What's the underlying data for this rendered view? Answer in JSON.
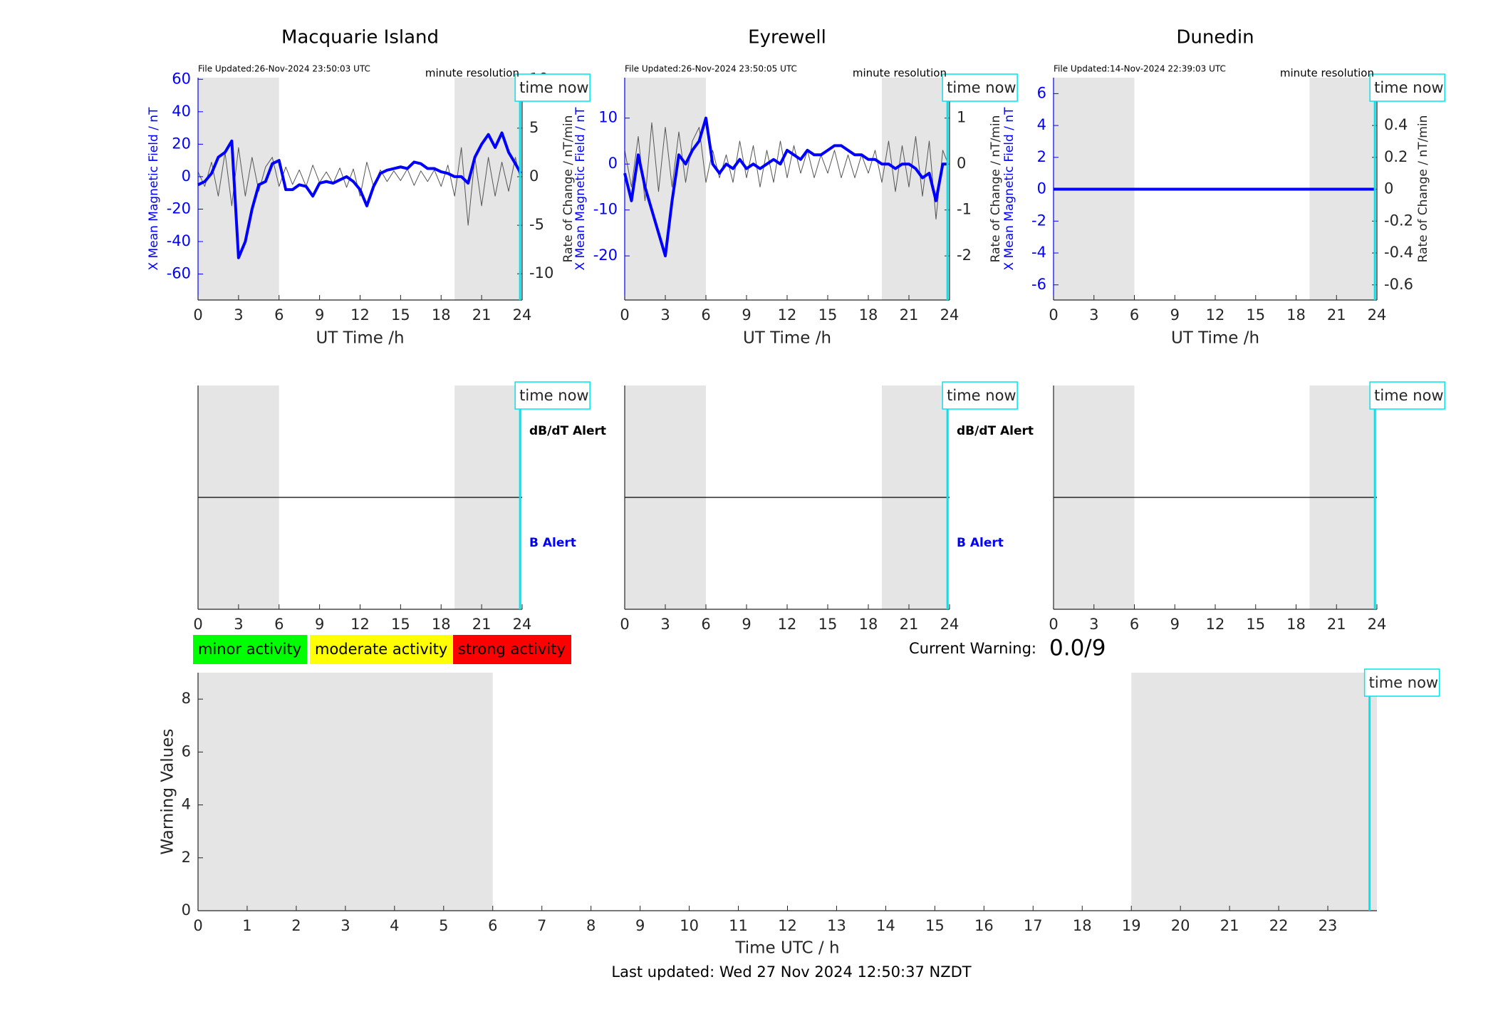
{
  "chart_data": [
    {
      "type": "line",
      "title": "Macquarie Island",
      "file_updated": "File Updated:26-Nov-2024 23:50:03 UTC",
      "resolution": "minute resolution",
      "xlabel": "UT Time /h",
      "ylabel": "X Mean Magnetic Field / nT",
      "y2label": "Rate of Change / nT/min",
      "ycolor": "#0000ff",
      "xlim": [
        0,
        24
      ],
      "xticks": [
        0,
        3,
        6,
        9,
        12,
        15,
        18,
        21,
        24
      ],
      "ylim": [
        -76,
        61
      ],
      "yticks": [
        -60,
        -40,
        -20,
        0,
        20,
        40,
        60
      ],
      "y2lim": [
        -12.7,
        10.2
      ],
      "y2ticks": [
        -10,
        -5,
        0,
        5,
        10
      ],
      "shaded": [
        [
          0,
          6
        ],
        [
          19,
          24
        ]
      ],
      "time_now": 23.85,
      "time_now_label": "time now",
      "x": [
        0,
        0.5,
        1,
        1.5,
        2,
        2.5,
        3,
        3.5,
        4,
        4.5,
        5,
        5.5,
        6,
        6.5,
        7,
        7.5,
        8,
        8.5,
        9,
        9.5,
        10,
        10.5,
        11,
        11.5,
        12,
        12.5,
        13,
        13.5,
        14,
        14.5,
        15,
        15.5,
        16,
        16.5,
        17,
        17.5,
        18,
        18.5,
        19,
        19.5,
        20,
        20.5,
        21,
        21.5,
        22,
        22.5,
        23,
        23.5,
        23.9
      ],
      "series": [
        {
          "color": "#555555",
          "axis": "y2",
          "values": [
            0.5,
            -1,
            1.5,
            -2,
            2.5,
            -3,
            3,
            -2,
            2,
            -1.5,
            1,
            2,
            -1,
            1,
            -0.8,
            0.7,
            -1,
            1.2,
            -0.6,
            0.5,
            -0.7,
            0.9,
            -1.1,
            0.8,
            -2,
            1.5,
            -1,
            0.7,
            -0.5,
            0.6,
            -0.4,
            0.8,
            -0.9,
            0.6,
            -0.5,
            0.7,
            -1,
            1.2,
            -2,
            3,
            -5,
            2,
            -3,
            2,
            -2,
            1.5,
            -1.5,
            2,
            -0.5
          ]
        },
        {
          "color": "#0000ff",
          "axis": "y",
          "values": [
            -5,
            -3,
            2,
            12,
            15,
            22,
            -50,
            -40,
            -20,
            -5,
            -3,
            8,
            10,
            -8,
            -8,
            -5,
            -6,
            -12,
            -4,
            -3,
            -4,
            -2,
            0,
            -3,
            -8,
            -18,
            -6,
            2,
            4,
            5,
            6,
            5,
            9,
            8,
            5,
            5,
            3,
            2,
            0,
            0,
            -4,
            12,
            20,
            26,
            18,
            27,
            15,
            8,
            2
          ]
        }
      ]
    },
    {
      "type": "line",
      "title": "Eyrewell",
      "file_updated": "File Updated:26-Nov-2024 23:50:05 UTC",
      "resolution": "minute resolution",
      "xlabel": "UT Time /h",
      "ylabel": "X Mean Magnetic Field / nT",
      "y2label": "Rate of Change / nT/min",
      "ycolor": "#0000ff",
      "xlim": [
        0,
        24
      ],
      "xticks": [
        0,
        3,
        6,
        9,
        12,
        15,
        18,
        21,
        24
      ],
      "ylim": [
        -29.6,
        18.8
      ],
      "yticks": [
        -20,
        -10,
        0,
        10
      ],
      "y2lim": [
        -2.96,
        1.88
      ],
      "y2ticks": [
        -2,
        -1,
        0,
        1
      ],
      "shaded": [
        [
          0,
          6
        ],
        [
          19,
          24
        ]
      ],
      "time_now": 23.85,
      "time_now_label": "time now",
      "x": [
        0,
        0.5,
        1,
        1.5,
        2,
        2.5,
        3,
        3.5,
        4,
        4.5,
        5,
        5.5,
        6,
        6.5,
        7,
        7.5,
        8,
        8.5,
        9,
        9.5,
        10,
        10.5,
        11,
        11.5,
        12,
        12.5,
        13,
        13.5,
        14,
        14.5,
        15,
        15.5,
        16,
        16.5,
        17,
        17.5,
        18,
        18.5,
        19,
        19.5,
        20,
        20.5,
        21,
        21.5,
        22,
        22.5,
        23,
        23.5,
        23.9
      ],
      "series": [
        {
          "color": "#555555",
          "axis": "y2",
          "values": [
            0.3,
            -0.5,
            0.6,
            -0.8,
            0.9,
            -0.6,
            0.8,
            -0.5,
            0.7,
            -0.4,
            0.5,
            0.8,
            -0.4,
            0.3,
            -0.3,
            0.2,
            -0.4,
            0.5,
            -0.3,
            0.4,
            -0.5,
            0.3,
            -0.4,
            0.5,
            -0.3,
            0.4,
            -0.2,
            0.3,
            -0.3,
            0.2,
            -0.2,
            0.3,
            -0.3,
            0.2,
            -0.3,
            0.2,
            -0.2,
            0.3,
            -0.4,
            0.5,
            -0.6,
            0.4,
            -0.5,
            0.6,
            -0.7,
            0.5,
            -1.2,
            0.3,
            0
          ]
        },
        {
          "color": "#0000ff",
          "axis": "y",
          "values": [
            -2,
            -8,
            2,
            -5,
            -10,
            -15,
            -20,
            -8,
            2,
            0,
            3,
            5,
            10,
            0,
            -2,
            0,
            -1,
            1,
            -1,
            0,
            -1,
            0,
            1,
            0,
            3,
            2,
            1,
            3,
            2,
            2,
            3,
            4,
            4,
            3,
            2,
            2,
            1,
            1,
            0,
            0,
            -1,
            0,
            0,
            -1,
            -3,
            -2,
            -8,
            0,
            0
          ]
        }
      ]
    },
    {
      "type": "line",
      "title": "Dunedin",
      "file_updated": "File Updated:14-Nov-2024 22:39:03 UTC",
      "resolution": "minute resolution",
      "xlabel": "UT Time /h",
      "ylabel": "X Mean Magnetic Field / nT",
      "y2label": "Rate of Change / nT/min",
      "ycolor": "#0000ff",
      "xlim": [
        0,
        24
      ],
      "xticks": [
        0,
        3,
        6,
        9,
        12,
        15,
        18,
        21,
        24
      ],
      "ylim": [
        -6.95,
        7.0
      ],
      "yticks": [
        -6,
        -4,
        -2,
        0,
        2,
        4,
        6
      ],
      "y2lim": [
        -0.695,
        0.7
      ],
      "y2ticks": [
        -0.6,
        -0.4,
        -0.2,
        0,
        0.2,
        0.4,
        0.6
      ],
      "shaded": [
        [
          0,
          6
        ],
        [
          19,
          24
        ]
      ],
      "time_now": 23.85,
      "time_now_label": "time now",
      "x": [
        0,
        23.9
      ],
      "series": [
        {
          "color": "#555555",
          "axis": "y2",
          "values": [
            0,
            0
          ]
        },
        {
          "color": "#0000ff",
          "axis": "y",
          "values": [
            0,
            0
          ]
        }
      ]
    },
    {
      "type": "alert",
      "xlim": [
        0,
        24
      ],
      "xticks": [
        0,
        3,
        6,
        9,
        12,
        15,
        18,
        21,
        24
      ],
      "ylim": [
        -1,
        1
      ],
      "hline": 0,
      "shaded": [
        [
          0,
          6
        ],
        [
          19,
          24
        ]
      ],
      "time_now": 23.85,
      "time_now_label": "time now",
      "annotations": [
        {
          "text": "dB/dT Alert",
          "color": "#000000"
        },
        {
          "text": "B Alert",
          "color": "#0000ff"
        }
      ]
    },
    {
      "type": "alert",
      "xlim": [
        0,
        24
      ],
      "xticks": [
        0,
        3,
        6,
        9,
        12,
        15,
        18,
        21,
        24
      ],
      "ylim": [
        -1,
        1
      ],
      "hline": 0,
      "shaded": [
        [
          0,
          6
        ],
        [
          19,
          24
        ]
      ],
      "time_now": 23.85,
      "time_now_label": "time now",
      "annotations": [
        {
          "text": "dB/dT Alert",
          "color": "#000000"
        },
        {
          "text": "B Alert",
          "color": "#0000ff"
        }
      ]
    },
    {
      "type": "alert",
      "xlim": [
        0,
        24
      ],
      "xticks": [
        0,
        3,
        6,
        9,
        12,
        15,
        18,
        21,
        24
      ],
      "ylim": [
        -1,
        1
      ],
      "hline": 0,
      "shaded": [
        [
          0,
          6
        ],
        [
          19,
          24
        ]
      ],
      "time_now": 23.85,
      "time_now_label": "time now"
    },
    {
      "type": "warning",
      "xlabel": "Time UTC / h",
      "ylabel": "Warning Values",
      "xlim": [
        0,
        24
      ],
      "xticks": [
        0,
        1,
        2,
        3,
        4,
        5,
        6,
        7,
        8,
        9,
        10,
        11,
        12,
        13,
        14,
        15,
        16,
        17,
        18,
        19,
        20,
        21,
        22,
        23
      ],
      "ylim": [
        0,
        9
      ],
      "yticks": [
        0,
        2,
        4,
        6,
        8
      ],
      "shaded": [
        [
          0,
          6
        ],
        [
          19,
          24
        ]
      ],
      "time_now": 23.85,
      "time_now_label": "time now",
      "legend": [
        {
          "name": "minor activity",
          "color": "#00ff00"
        },
        {
          "name": "moderate activity",
          "color": "#ffff00"
        },
        {
          "name": "strong activity",
          "color": "#ff0000"
        }
      ],
      "current_warning_label": "Current Warning:",
      "current_warning": "0.0/9",
      "footer": "Last updated: Wed 27 Nov 2024 12:50:37 NZDT"
    }
  ]
}
